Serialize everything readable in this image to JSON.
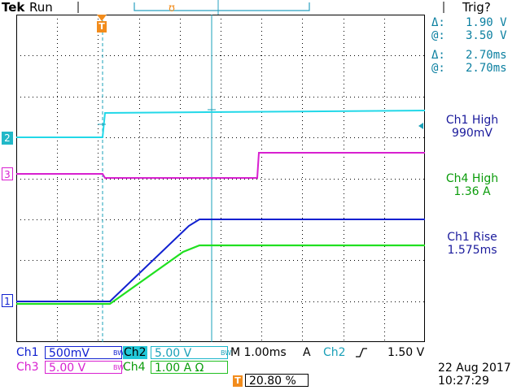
{
  "header": {
    "brand": "Tek",
    "run_state": "Run",
    "trigger_state": "Trig?"
  },
  "cursor_readout": {
    "delta_v": "1.90 V",
    "at_v": "3.50 V",
    "delta_t": "2.70ms",
    "at_t": "2.70ms",
    "delta_symbol": "Δ:",
    "at_symbol": "@:"
  },
  "measurements": [
    {
      "name": "Ch1 High",
      "value": "990mV",
      "color": "#1a1a9c"
    },
    {
      "name": "Ch4 High",
      "value": "1.36 A",
      "color": "#0b9c0b"
    },
    {
      "name": "Ch1 Rise",
      "value": "1.575ms",
      "color": "#1a1a9c"
    }
  ],
  "channel_markers": {
    "ch2": "2",
    "ch3": "3",
    "ch1": "1"
  },
  "settings": {
    "ch1_label": "Ch1",
    "ch1_scale": "500mV",
    "ch2_label": "Ch2",
    "ch2_scale": "5.00 V",
    "ch3_label": "Ch3",
    "ch3_scale": "5.00 V",
    "ch4_label": "Ch4",
    "ch4_scale": "1.00 A Ω",
    "bw_label": "BW",
    "timebase": "M 1.00ms",
    "trigger_mode": "A",
    "trigger_source": "Ch2",
    "trigger_level": "1.50 V",
    "trigger_position": "20.80 %",
    "t_marker": "T"
  },
  "datetime": {
    "date": "22 Aug 2017",
    "time": "10:27:29"
  },
  "colors": {
    "ch1": "#1020d0",
    "ch2": "#22d8e8",
    "ch3": "#d820d0",
    "ch4": "#20e020",
    "cursor": "#1aa0b8",
    "readout": "#0a7fa0"
  }
}
